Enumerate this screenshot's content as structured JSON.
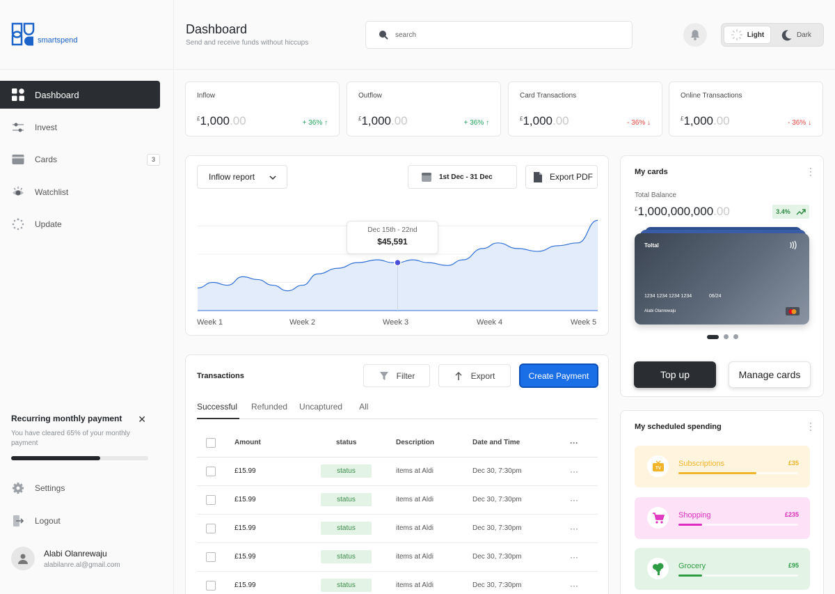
{
  "brand": {
    "name": "smartspend",
    "color": "#1b62c9"
  },
  "sidebar": {
    "items": [
      {
        "label": "Dashboard",
        "icon": "dashboard-grid-icon",
        "active": true
      },
      {
        "label": "Invest",
        "icon": "sliders-icon"
      },
      {
        "label": "Cards",
        "icon": "card-icon",
        "badge": "3"
      },
      {
        "label": "Watchlist",
        "icon": "eye-icon"
      },
      {
        "label": "Update",
        "icon": "loader-icon"
      }
    ],
    "recurring": {
      "title": "Recurring monthly payment",
      "description": "You have cleared 65% of your monthly payment",
      "progress": 0.65
    },
    "bottom_items": [
      {
        "label": "Settings",
        "icon": "gear-icon"
      },
      {
        "label": "Logout",
        "icon": "logout-icon"
      }
    ],
    "user": {
      "name": "Alabi Olanrewaju",
      "email": "alabilanre.al@gmail.com"
    }
  },
  "header": {
    "title": "Dashboard",
    "subtitle": "Send and receive funds without hiccups",
    "search_placeholder": "search",
    "theme": {
      "light_label": "Light",
      "dark_label": "Dark",
      "selected": "Light"
    }
  },
  "stats": [
    {
      "title": "Inflow",
      "currency": "£",
      "amount": "1,000",
      "decimals": ".00",
      "change": "+ 36% ↑",
      "trend": "up"
    },
    {
      "title": "Outflow",
      "currency": "£",
      "amount": "1,000",
      "decimals": ".00",
      "change": "+ 36% ↑",
      "trend": "up"
    },
    {
      "title": "Card Transactions",
      "currency": "£",
      "amount": "1,000",
      "decimals": ".00",
      "change": "- 36% ↓",
      "trend": "down"
    },
    {
      "title": "Online Transactions",
      "currency": "£",
      "amount": "1,000",
      "decimals": ".00",
      "change": "- 36% ↓",
      "trend": "down"
    }
  ],
  "report": {
    "select_label": "Inflow report",
    "date_range": "1st Dec - 31 Dec",
    "export_label": "Export PDF",
    "tooltip": {
      "range": "Dec 15th - 22nd",
      "value": "$45,591"
    }
  },
  "chart_data": {
    "type": "area",
    "title": "",
    "xlabel": "",
    "ylabel": "",
    "x_ticks": [
      "Week 1",
      "Week 2",
      "Week 3",
      "Week 4",
      "Week 5"
    ],
    "x": [
      1.0,
      1.15,
      1.3,
      1.45,
      1.6,
      1.75,
      1.9,
      2.05,
      2.2,
      2.4,
      2.6,
      2.8,
      2.95,
      3.0,
      3.15,
      3.3,
      3.5,
      3.65,
      3.85,
      4.0,
      4.2,
      4.4,
      4.6,
      4.8,
      5.0
    ],
    "y": [
      8,
      10,
      9,
      12,
      11,
      9,
      7,
      9,
      13,
      15,
      17,
      18,
      17,
      17,
      18,
      17,
      16,
      18,
      22,
      24,
      22,
      21,
      23,
      24,
      32
    ],
    "ylim": [
      0,
      40
    ],
    "highlight": {
      "x": 3.0,
      "label": "Dec 15th - 22nd",
      "value": "$45,591"
    },
    "line_color": "#2f6fd6",
    "fill_color": "#e3ecfa",
    "grid": true
  },
  "transactions": {
    "title": "Transactions",
    "filter_label": "Filter",
    "export_label": "Export",
    "create_label": "Create Payment",
    "tabs": [
      "Successful",
      "Refunded",
      "Uncaptured",
      "All"
    ],
    "active_tab": "Successful",
    "columns": [
      "Amount",
      "status",
      "Description",
      "Date and Time"
    ],
    "rows": [
      {
        "amount": "£15.99",
        "status": "status",
        "description": "items at Aldi",
        "datetime": "Dec 30, 7:30pm"
      },
      {
        "amount": "£15.99",
        "status": "status",
        "description": "items at Aldi",
        "datetime": "Dec 30, 7:30pm"
      },
      {
        "amount": "£15.99",
        "status": "status",
        "description": "items at Aldi",
        "datetime": "Dec 30, 7:30pm"
      },
      {
        "amount": "£15.99",
        "status": "status",
        "description": "items at Aldi",
        "datetime": "Dec 30, 7:30pm"
      },
      {
        "amount": "£15.99",
        "status": "status",
        "description": "items at Aldi",
        "datetime": "Dec 30, 7:30pm"
      }
    ]
  },
  "my_cards": {
    "title": "My cards",
    "balance_label": "Total Balance",
    "currency": "£",
    "balance": "1,000,000,000",
    "decimals": ".00",
    "change": "3.4%",
    "card": {
      "brand": "Toltal",
      "number": "1234 1234 1234 1234",
      "expiry": "06/24",
      "holder": "Alabi Olanrewaju",
      "network_icon": "mastercard-icon"
    },
    "topup_label": "Top up",
    "manage_label": "Manage cards"
  },
  "scheduled": {
    "title": "My scheduled spending",
    "items": [
      {
        "label": "Subscriptions",
        "amount": "£35",
        "icon": "tv-icon",
        "bg": "#fff4de",
        "accent": "#f0b429",
        "progress": 0.65
      },
      {
        "label": "Shopping",
        "amount": "£235",
        "icon": "cart-icon",
        "bg": "#fde2f7",
        "accent": "#dd2bbd",
        "progress": 0.2
      },
      {
        "label": "Grocery",
        "amount": "£95",
        "icon": "broccoli-icon",
        "bg": "#e3f4e6",
        "accent": "#2e9c44",
        "progress": 0.2
      }
    ]
  }
}
